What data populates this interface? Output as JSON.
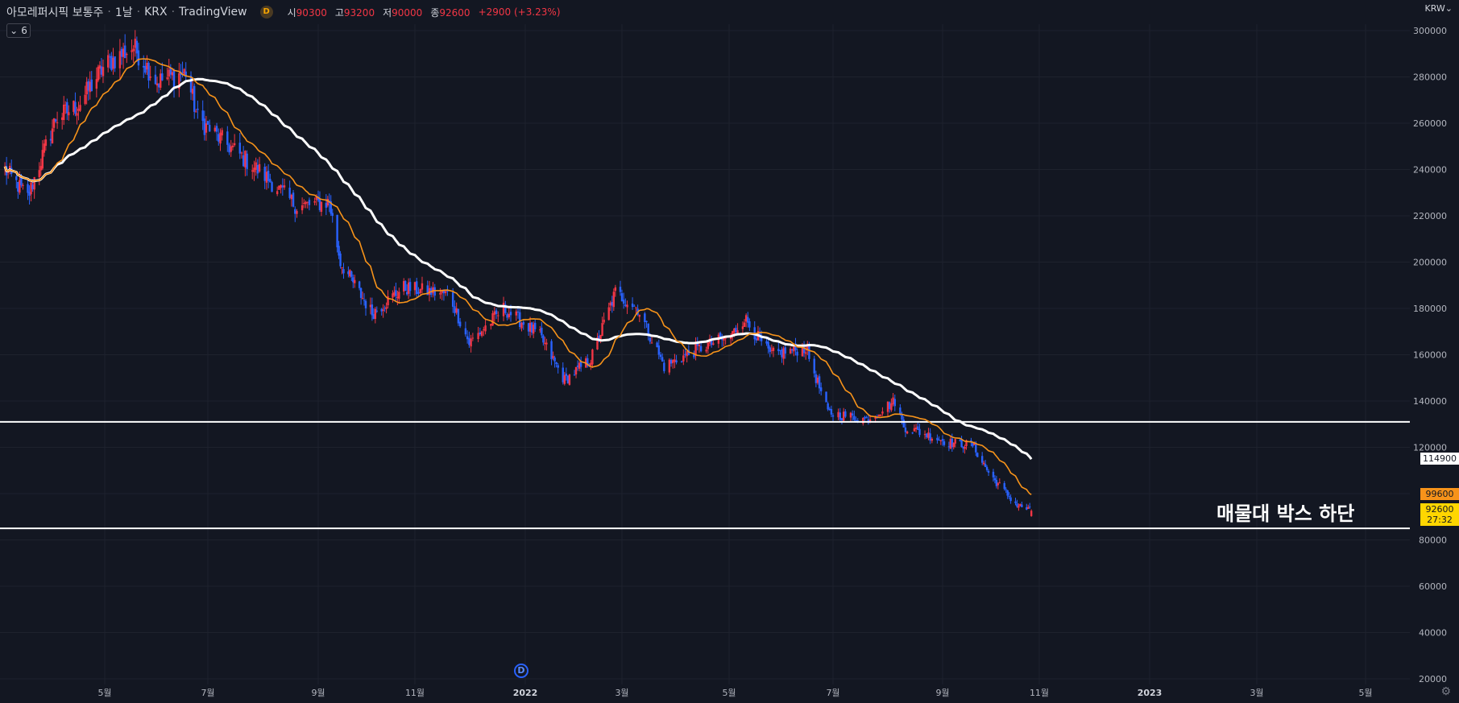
{
  "header": {
    "symbol": "아모레퍼시픽 보통주",
    "interval": "1날",
    "exchange": "KRX",
    "source": "TradingView",
    "badge": "D",
    "open_label": "시",
    "open": "90300",
    "high_label": "고",
    "high": "93200",
    "low_label": "저",
    "low": "90000",
    "close_label": "종",
    "close": "92600",
    "change": "+2900 (+3.23%)",
    "collapse_count": "6",
    "currency": "KRW"
  },
  "colors": {
    "up": "#f23645",
    "down": "#2962ff",
    "ma_fast": "#f7931a",
    "ma_slow": "#ffffff",
    "background": "#131722",
    "grid": "#1e222d"
  },
  "price_tags": {
    "ma_slow_value": "114900",
    "ma_fast_value": "99600",
    "last_price": "92600",
    "countdown": "27:32"
  },
  "annotation": "매물대 박스 하단",
  "time_marker": "D",
  "chart_data": {
    "type": "candlestick",
    "title": "아모레퍼시픽 보통주 · 1날 · KRX",
    "y_axis": {
      "min": 20000,
      "max": 300000,
      "ticks": [
        300000,
        280000,
        260000,
        240000,
        220000,
        200000,
        180000,
        160000,
        140000,
        120000,
        80000,
        60000,
        40000,
        20000
      ]
    },
    "x_axis": {
      "labels": [
        "5월",
        "7월",
        "9월",
        "11월",
        "2022",
        "3월",
        "5월",
        "7월",
        "9월",
        "11월",
        "2023",
        "3월",
        "5월"
      ],
      "bold": [
        "2022",
        "2023"
      ]
    },
    "horizontal_lines": [
      131000,
      85000
    ],
    "close_anchors": [
      [
        "2021-03-01",
        240000
      ],
      [
        "2021-03-15",
        228000
      ],
      [
        "2021-04-01",
        262000
      ],
      [
        "2021-04-15",
        268000
      ],
      [
        "2021-05-01",
        285000
      ],
      [
        "2021-05-18",
        293000
      ],
      [
        "2021-06-01",
        278000
      ],
      [
        "2021-06-18",
        282000
      ],
      [
        "2021-06-25",
        262000
      ],
      [
        "2021-07-10",
        252000
      ],
      [
        "2021-08-01",
        238000
      ],
      [
        "2021-08-20",
        224000
      ],
      [
        "2021-09-08",
        226000
      ],
      [
        "2021-09-15",
        200000
      ],
      [
        "2021-10-05",
        178000
      ],
      [
        "2021-10-25",
        189000
      ],
      [
        "2021-11-20",
        186000
      ],
      [
        "2021-12-01",
        165000
      ],
      [
        "2021-12-20",
        180000
      ],
      [
        "2022-01-10",
        168000
      ],
      [
        "2022-01-25",
        149000
      ],
      [
        "2022-02-10",
        158000
      ],
      [
        "2022-02-25",
        187000
      ],
      [
        "2022-03-10",
        180000
      ],
      [
        "2022-03-25",
        155000
      ],
      [
        "2022-04-15",
        163000
      ],
      [
        "2022-05-02",
        168000
      ],
      [
        "2022-05-10",
        176000
      ],
      [
        "2022-05-25",
        160000
      ],
      [
        "2022-06-15",
        163000
      ],
      [
        "2022-06-28",
        135000
      ],
      [
        "2022-07-20",
        132000
      ],
      [
        "2022-08-05",
        140000
      ],
      [
        "2022-08-10",
        129000
      ],
      [
        "2022-09-05",
        122000
      ],
      [
        "2022-09-20",
        121000
      ],
      [
        "2022-10-01",
        108000
      ],
      [
        "2022-10-18",
        95000
      ],
      [
        "2022-10-27",
        92600
      ]
    ],
    "series": [
      {
        "name": "MA fast",
        "last": 99600
      },
      {
        "name": "MA slow",
        "last": 114900
      }
    ]
  }
}
